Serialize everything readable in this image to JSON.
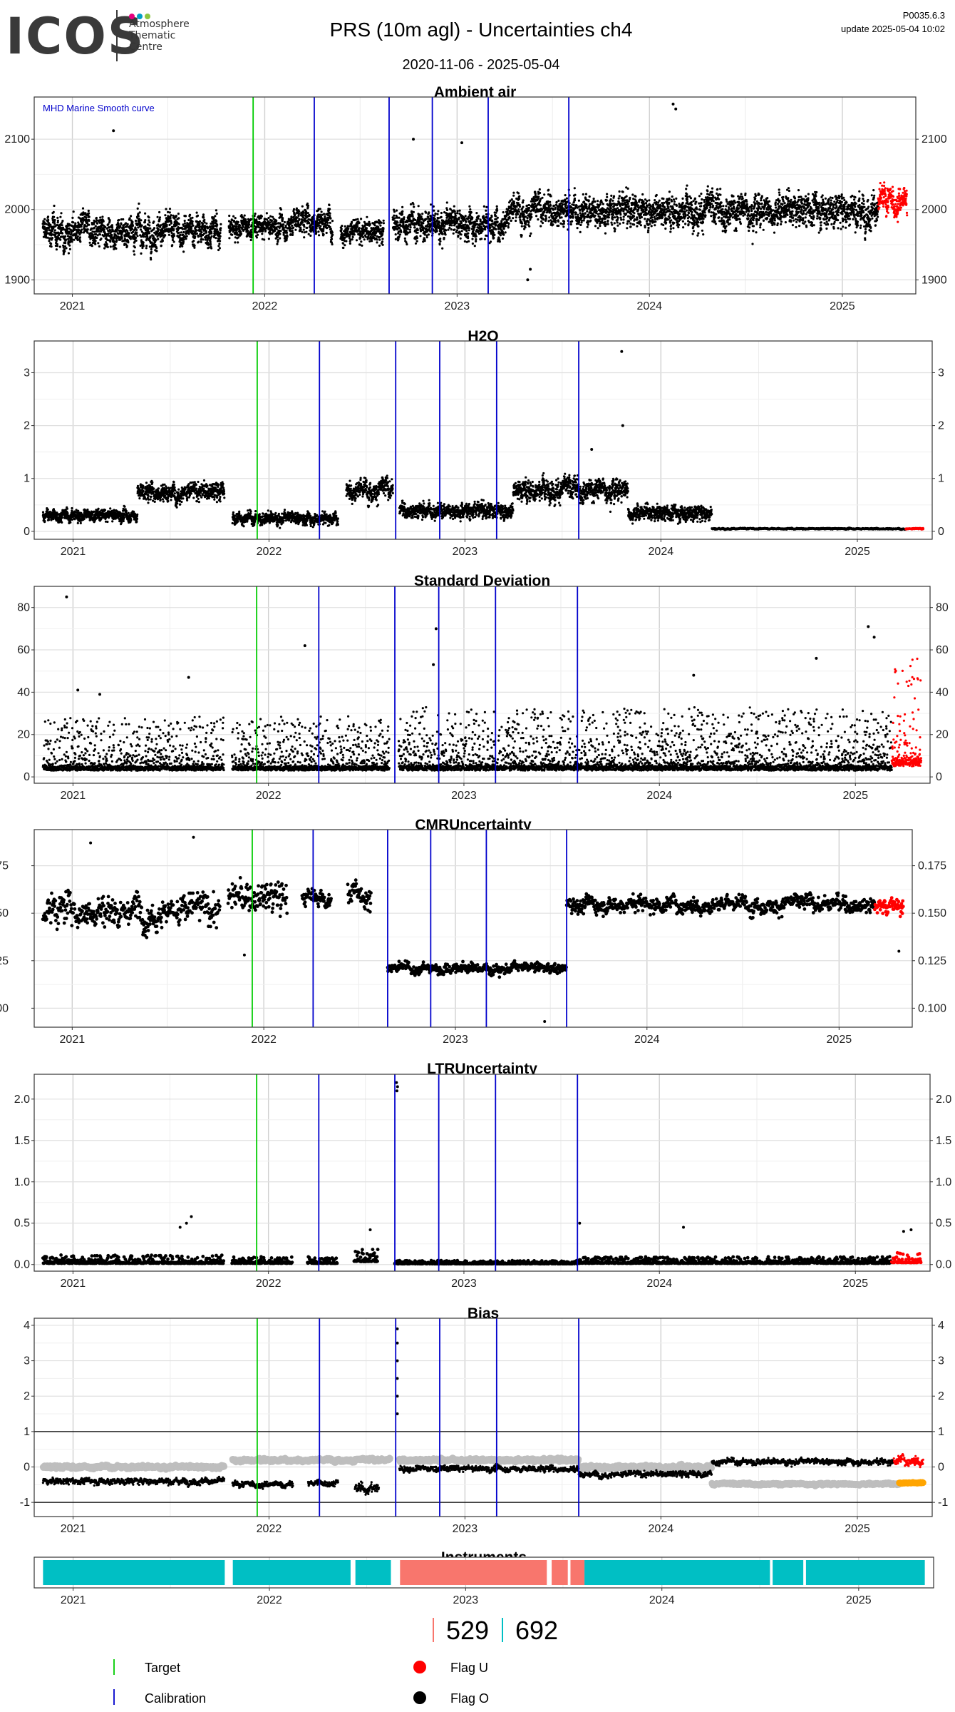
{
  "header": {
    "logo_text": "ICOS",
    "logo_sub_lines": [
      "Atmosphere",
      "Thematic",
      "Centre"
    ],
    "logo_dot_colors": [
      "#e6007e",
      "#00a0c6",
      "#8cc63f"
    ],
    "title": "PRS  (10m agl) - Uncertainties ch4",
    "date_range": "2020-11-06 - 2025-05-04",
    "version": "P0035.6.3",
    "update": "update  2025-05-04 10:02"
  },
  "colors": {
    "target": "#00cc00",
    "calibration": "#0000cc",
    "flag_u": "#ff0000",
    "flag_o": "#000000",
    "bias_grey": "#bebebe",
    "bias_orange": "#ffa500",
    "instrument_a": "#f8766d",
    "instrument_b": "#00bfc4"
  },
  "chart_data": [
    {
      "type": "scatter",
      "title": "Ambient air",
      "annotation": "MHD Marine Smooth curve",
      "x_range": [
        "2020-11-06",
        "2025-05-04"
      ],
      "x_ticks": [
        "2021",
        "2022",
        "2023",
        "2024",
        "2025"
      ],
      "ylim": [
        1880,
        2160
      ],
      "y_ticks": [
        1900,
        2000,
        2100
      ],
      "target_lines": [
        "2021-12-10"
      ],
      "calibration_lines": [
        "2022-04-05",
        "2022-08-25",
        "2022-11-15",
        "2023-03-01",
        "2023-08-01"
      ],
      "series": [
        {
          "flag": "O",
          "segments": [
            {
              "from": "2020-11-06",
              "to": "2021-10-10",
              "base": 1970,
              "spread": 38
            },
            {
              "from": "2021-10-25",
              "to": "2022-02-20",
              "base": 1975,
              "spread": 30
            },
            {
              "from": "2022-02-20",
              "to": "2022-05-10",
              "base": 1985,
              "spread": 35
            },
            {
              "from": "2022-05-25",
              "to": "2022-08-15",
              "base": 1968,
              "spread": 30
            },
            {
              "from": "2022-09-01",
              "to": "2023-04-01",
              "base": 1980,
              "spread": 38
            },
            {
              "from": "2023-04-01",
              "to": "2025-03-10",
              "base": 2000,
              "spread": 40
            }
          ]
        },
        {
          "flag": "U",
          "segments": [
            {
              "from": "2025-03-10",
              "to": "2025-05-04",
              "base": 2010,
              "spread": 35
            }
          ]
        }
      ],
      "outliers": [
        [
          "2021-03-20",
          2112
        ],
        [
          "2024-02-15",
          2150
        ],
        [
          "2024-02-20",
          2143
        ],
        [
          "2023-01-10",
          2095
        ],
        [
          "2022-10-10",
          2100
        ],
        [
          "2023-05-15",
          1900
        ],
        [
          "2023-05-20",
          1915
        ]
      ]
    },
    {
      "type": "scatter",
      "title": "H2O",
      "x_range": [
        "2020-11-06",
        "2025-05-04"
      ],
      "x_ticks": [
        "2021",
        "2022",
        "2023",
        "2024",
        "2025"
      ],
      "ylim": [
        -0.15,
        3.6
      ],
      "y_ticks": [
        0,
        1,
        2,
        3
      ],
      "target_lines": [
        "2021-12-10"
      ],
      "calibration_lines": [
        "2022-04-05",
        "2022-08-25",
        "2022-11-15",
        "2023-03-01",
        "2023-08-01"
      ],
      "series": [
        {
          "flag": "O",
          "segments": [
            {
              "from": "2020-11-06",
              "to": "2021-05-01",
              "base": 0.3,
              "spread": 0.2
            },
            {
              "from": "2021-05-01",
              "to": "2021-10-10",
              "base": 0.75,
              "spread": 0.3
            },
            {
              "from": "2021-10-25",
              "to": "2022-05-10",
              "base": 0.25,
              "spread": 0.2
            },
            {
              "from": "2022-05-25",
              "to": "2022-08-20",
              "base": 0.8,
              "spread": 0.35
            },
            {
              "from": "2022-09-01",
              "to": "2023-04-01",
              "base": 0.4,
              "spread": 0.25
            },
            {
              "from": "2023-04-01",
              "to": "2023-11-01",
              "base": 0.8,
              "spread": 0.35
            },
            {
              "from": "2023-11-01",
              "to": "2024-04-05",
              "base": 0.35,
              "spread": 0.25
            },
            {
              "from": "2024-04-05",
              "to": "2025-04-01",
              "base": 0.05,
              "spread": 0.02
            }
          ]
        },
        {
          "flag": "U",
          "segments": [
            {
              "from": "2025-04-01",
              "to": "2025-05-04",
              "base": 0.05,
              "spread": 0.02
            }
          ]
        }
      ],
      "outliers": [
        [
          "2023-10-20",
          3.4
        ],
        [
          "2023-10-22",
          2.0
        ],
        [
          "2023-08-25",
          1.55
        ]
      ]
    },
    {
      "type": "scatter",
      "title": "Standard Deviation",
      "x_range": [
        "2020-11-06",
        "2025-05-04"
      ],
      "x_ticks": [
        "2021",
        "2022",
        "2023",
        "2024",
        "2025"
      ],
      "ylim": [
        -3,
        90
      ],
      "y_ticks": [
        0,
        20,
        40,
        60,
        80
      ],
      "target_lines": [
        "2021-12-10"
      ],
      "calibration_lines": [
        "2022-04-05",
        "2022-08-25",
        "2022-11-15",
        "2023-03-01",
        "2023-08-01"
      ],
      "series": [
        {
          "flag": "O",
          "segments": [
            {
              "from": "2020-11-06",
              "to": "2021-10-10",
              "base": 3,
              "spread": 6
            },
            {
              "from": "2021-10-25",
              "to": "2022-08-15",
              "base": 3,
              "spread": 6
            },
            {
              "from": "2022-09-01",
              "to": "2025-03-10",
              "base": 3,
              "spread": 7
            }
          ]
        },
        {
          "flag": "U",
          "segments": [
            {
              "from": "2025-03-10",
              "to": "2025-05-04",
              "base": 5,
              "spread": 12
            }
          ]
        }
      ],
      "outliers": [
        [
          "2020-12-20",
          85
        ],
        [
          "2021-01-10",
          41
        ],
        [
          "2021-02-20",
          39
        ],
        [
          "2021-08-05",
          47
        ],
        [
          "2022-03-10",
          62
        ],
        [
          "2022-11-10",
          70
        ],
        [
          "2022-11-05",
          53
        ],
        [
          "2024-03-05",
          48
        ],
        [
          "2024-10-20",
          56
        ],
        [
          "2025-01-25",
          71
        ],
        [
          "2025-02-05",
          66
        ]
      ]
    },
    {
      "type": "scatter",
      "title": "CMRUncertainty",
      "x_range": [
        "2020-11-06",
        "2025-05-04"
      ],
      "x_ticks": [
        "2021",
        "2022",
        "2023",
        "2024",
        "2025"
      ],
      "ylim": [
        0.09,
        0.194
      ],
      "y_ticks": [
        0.1,
        0.125,
        0.15,
        0.175
      ],
      "target_lines": [
        "2021-12-10"
      ],
      "calibration_lines": [
        "2022-04-05",
        "2022-08-25",
        "2022-11-15",
        "2023-03-01",
        "2023-08-01"
      ],
      "series": [
        {
          "flag": "O",
          "segments": [
            {
              "from": "2020-11-06",
              "to": "2021-10-10",
              "base": 0.152,
              "spread": 0.015,
              "sparse": true
            },
            {
              "from": "2021-10-25",
              "to": "2022-02-15",
              "base": 0.158,
              "spread": 0.015,
              "sparse": true
            },
            {
              "from": "2022-03-15",
              "to": "2022-05-10",
              "base": 0.158,
              "spread": 0.008,
              "sparse": true
            },
            {
              "from": "2022-06-10",
              "to": "2022-07-25",
              "base": 0.16,
              "spread": 0.012,
              "sparse": true
            },
            {
              "from": "2022-08-25",
              "to": "2023-08-01",
              "base": 0.121,
              "spread": 0.005,
              "sparse": true
            },
            {
              "from": "2023-08-01",
              "to": "2025-03-10",
              "base": 0.155,
              "spread": 0.008,
              "sparse": true
            }
          ]
        },
        {
          "flag": "U",
          "segments": [
            {
              "from": "2025-03-10",
              "to": "2025-05-04",
              "base": 0.154,
              "spread": 0.008,
              "sparse": true
            }
          ]
        }
      ],
      "outliers": [
        [
          "2021-08-20",
          0.19
        ],
        [
          "2021-02-05",
          0.187
        ],
        [
          "2023-06-20",
          0.093
        ],
        [
          "2021-11-25",
          0.128
        ],
        [
          "2025-04-25",
          0.13
        ]
      ]
    },
    {
      "type": "scatter",
      "title": "LTRUncertainty",
      "x_range": [
        "2020-11-06",
        "2025-05-04"
      ],
      "x_ticks": [
        "2021",
        "2022",
        "2023",
        "2024",
        "2025"
      ],
      "ylim": [
        -0.08,
        2.3
      ],
      "y_ticks": [
        0.0,
        0.5,
        1.0,
        1.5,
        2.0
      ],
      "y_tick_labels": [
        "0.0",
        "0.5",
        "1.0",
        "1.5",
        "2.0"
      ],
      "target_lines": [
        "2021-12-10"
      ],
      "calibration_lines": [
        "2022-04-05",
        "2022-08-25",
        "2022-11-15",
        "2023-03-01",
        "2023-08-01"
      ],
      "series": [
        {
          "flag": "O",
          "segments": [
            {
              "from": "2020-11-06",
              "to": "2021-10-10",
              "base": 0.05,
              "spread": 0.1,
              "sparse": true
            },
            {
              "from": "2021-10-25",
              "to": "2022-02-15",
              "base": 0.05,
              "spread": 0.08,
              "sparse": true
            },
            {
              "from": "2022-03-15",
              "to": "2022-05-10",
              "base": 0.05,
              "spread": 0.08,
              "sparse": true
            },
            {
              "from": "2022-06-10",
              "to": "2022-07-25",
              "base": 0.12,
              "spread": 0.15,
              "sparse": true
            },
            {
              "from": "2022-08-25",
              "to": "2023-08-01",
              "base": 0.03,
              "spread": 0.04,
              "sparse": true
            },
            {
              "from": "2023-08-01",
              "to": "2025-03-10",
              "base": 0.05,
              "spread": 0.08,
              "sparse": true
            }
          ]
        },
        {
          "flag": "U",
          "segments": [
            {
              "from": "2025-03-10",
              "to": "2025-05-04",
              "base": 0.08,
              "spread": 0.12,
              "sparse": true
            }
          ]
        }
      ],
      "outliers": [
        [
          "2022-08-28",
          2.2
        ],
        [
          "2022-08-29",
          2.1
        ],
        [
          "2022-08-30",
          2.15
        ],
        [
          "2021-08-10",
          0.58
        ],
        [
          "2021-08-01",
          0.5
        ],
        [
          "2021-07-20",
          0.45
        ],
        [
          "2022-07-10",
          0.42
        ],
        [
          "2023-08-05",
          0.5
        ],
        [
          "2024-02-15",
          0.45
        ],
        [
          "2025-04-01",
          0.4
        ],
        [
          "2025-04-15",
          0.42
        ]
      ]
    },
    {
      "type": "line",
      "title": "Bias",
      "x_range": [
        "2020-11-06",
        "2025-05-04"
      ],
      "x_ticks": [
        "2021",
        "2022",
        "2023",
        "2024",
        "2025"
      ],
      "ylim": [
        -1.4,
        4.2
      ],
      "y_ticks": [
        -1,
        0,
        1,
        2,
        3,
        4
      ],
      "h_lines": [
        -1,
        1
      ],
      "target_lines": [
        "2021-12-10"
      ],
      "calibration_lines": [
        "2022-04-05",
        "2022-08-25",
        "2022-11-15",
        "2023-03-01",
        "2023-08-01"
      ],
      "series": [
        {
          "flag": "grey",
          "segments": [
            {
              "from": "2020-11-06",
              "to": "2021-10-10",
              "base": 0.0,
              "spread": 0.08
            },
            {
              "from": "2021-10-25",
              "to": "2022-08-15",
              "base": 0.2,
              "spread": 0.08
            },
            {
              "from": "2022-09-01",
              "to": "2023-08-01",
              "base": 0.2,
              "spread": 0.08
            },
            {
              "from": "2023-08-01",
              "to": "2024-04-05",
              "base": 0.0,
              "spread": 0.1
            },
            {
              "from": "2024-04-05",
              "to": "2025-03-20",
              "base": -0.48,
              "spread": 0.05
            }
          ]
        },
        {
          "flag": "O",
          "segments": [
            {
              "from": "2020-11-06",
              "to": "2021-10-10",
              "base": -0.4,
              "spread": 0.15
            },
            {
              "from": "2021-10-25",
              "to": "2022-02-15",
              "base": -0.5,
              "spread": 0.15
            },
            {
              "from": "2022-03-15",
              "to": "2022-05-10",
              "base": -0.45,
              "spread": 0.15
            },
            {
              "from": "2022-06-10",
              "to": "2022-07-25",
              "base": -0.6,
              "spread": 0.25
            },
            {
              "from": "2022-09-01",
              "to": "2023-08-01",
              "base": -0.05,
              "spread": 0.15
            },
            {
              "from": "2023-08-01",
              "to": "2024-04-05",
              "base": -0.2,
              "spread": 0.15
            },
            {
              "from": "2024-04-05",
              "to": "2025-03-10",
              "base": 0.15,
              "spread": 0.15
            }
          ]
        },
        {
          "flag": "U",
          "segments": [
            {
              "from": "2025-03-10",
              "to": "2025-05-04",
              "base": 0.2,
              "spread": 0.25
            }
          ]
        },
        {
          "flag": "orange",
          "segments": [
            {
              "from": "2025-03-20",
              "to": "2025-05-04",
              "base": -0.45,
              "spread": 0.03
            }
          ]
        }
      ],
      "outliers": [
        [
          "2022-08-28",
          1.5
        ],
        [
          "2022-08-28",
          2.0
        ],
        [
          "2022-08-28",
          2.5
        ],
        [
          "2022-08-28",
          3.0
        ],
        [
          "2022-08-28",
          3.5
        ],
        [
          "2022-08-28",
          3.9
        ]
      ]
    },
    {
      "type": "bar",
      "title": "Instruments",
      "x_range": [
        "2020-11-06",
        "2025-05-04"
      ],
      "x_ticks": [
        "2021",
        "2022",
        "2023",
        "2024",
        "2025"
      ],
      "blocks": [
        {
          "from": "2020-11-06",
          "to": "2021-10-10",
          "instrument": "692"
        },
        {
          "from": "2021-10-25",
          "to": "2022-06-01",
          "instrument": "692"
        },
        {
          "from": "2022-06-10",
          "to": "2022-08-15",
          "instrument": "692"
        },
        {
          "from": "2022-09-01",
          "to": "2023-06-01",
          "instrument": "529"
        },
        {
          "from": "2023-06-10",
          "to": "2023-07-10",
          "instrument": "529"
        },
        {
          "from": "2023-07-15",
          "to": "2023-08-10",
          "instrument": "529"
        },
        {
          "from": "2023-08-10",
          "to": "2024-07-20",
          "instrument": "692"
        },
        {
          "from": "2024-07-25",
          "to": "2024-09-20",
          "instrument": "692"
        },
        {
          "from": "2024-09-25",
          "to": "2025-05-04",
          "instrument": "692"
        }
      ],
      "instrument_labels": [
        "529",
        "692"
      ]
    }
  ],
  "legend": {
    "target": "Target",
    "calibration": "Calibration",
    "flag_u": "Flag U",
    "flag_o": "Flag O"
  }
}
